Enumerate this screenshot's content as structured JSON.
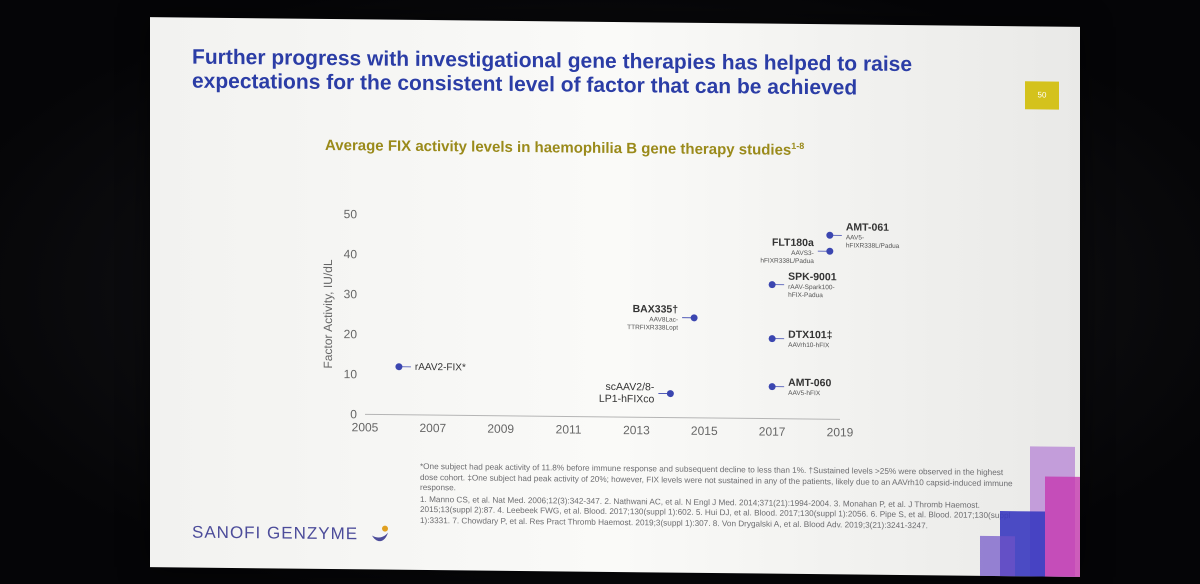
{
  "slide": {
    "headline_line1": "Further progress with investigational gene therapies has helped to raise",
    "headline_line2": "expectations for the consistent level of factor that can be achieved",
    "page_number": "50",
    "chart_title": "Average FIX activity levels in haemophilia B gene therapy studies",
    "chart_title_refs": "1-8",
    "footnote_1": "*One subject had peak activity of 11.8% before immune response and subsequent decline to less than 1%. †Sustained levels >25% were observed in the highest dose cohort. ‡One subject had peak activity of 20%; however, FIX levels were not sustained in any of the patients, likely due to an AAVrh10 capsid-induced immune response.",
    "footnote_2": "1. Manno CS, et al. Nat Med. 2006;12(3):342-347. 2. Nathwani AC, et al. N Engl J Med. 2014;371(21):1994-2004. 3. Monahan P, et al. J Thromb Haemost. 2015;13(suppl 2):87. 4. Leebeek FWG, et al. Blood. 2017;130(suppl 1):602. 5. Hui DJ, et al. Blood. 2017;130(suppl 1):2056. 6. Pipe S, et al. Blood. 2017;130(suppl 1):3331. 7. Chowdary P, et al. Res Pract Thromb Haemost. 2019;3(suppl 1):307. 8. Von Drygalski A, et al. Blood Adv. 2019;3(21):3241-3247.",
    "logo_text": "SANOFI GENZYME",
    "colors": {
      "headline": "#2b3da6",
      "chart_title": "#9a8a1a",
      "point": "#3b46b0",
      "page_badge": "#d4c21c"
    }
  },
  "chart_data": {
    "type": "scatter",
    "title": "Average FIX activity levels in haemophilia B gene therapy studies",
    "ylabel": "Factor Activity, IU/dL",
    "xlabel": "",
    "xlim": [
      2005,
      2019
    ],
    "ylim": [
      0,
      50
    ],
    "xticks": [
      2005,
      2007,
      2009,
      2011,
      2013,
      2015,
      2017,
      2019
    ],
    "yticks": [
      0,
      10,
      20,
      30,
      40,
      50
    ],
    "grid": false,
    "points": [
      {
        "x": 2006,
        "y": 12,
        "name": "rAAV2-FIX*",
        "detail": ""
      },
      {
        "x": 2014,
        "y": 6,
        "name": "scAAV2/8-\nLP1-hFIXco",
        "detail": ""
      },
      {
        "x": 2014.7,
        "y": 25,
        "name": "BAX335†",
        "detail": "AAV8Lac-\nTTRFIXR338Lopt"
      },
      {
        "x": 2017,
        "y": 20,
        "name": "DTX101‡",
        "detail": "AAVrh10-hFIX"
      },
      {
        "x": 2017,
        "y": 8,
        "name": "AMT-060",
        "detail": "AAV5-hFIX"
      },
      {
        "x": 2017,
        "y": 33.5,
        "name": "SPK-9001",
        "detail": "rAAV-Spark100-\nhFIX-Padua"
      },
      {
        "x": 2018.7,
        "y": 42,
        "name": "FLT180a",
        "detail": "AAVS3-\nhFIXR338L/Padua"
      },
      {
        "x": 2018.7,
        "y": 46,
        "name": "AMT-061",
        "detail": "AAV5-\nhFIXR338L/Padua"
      }
    ]
  }
}
